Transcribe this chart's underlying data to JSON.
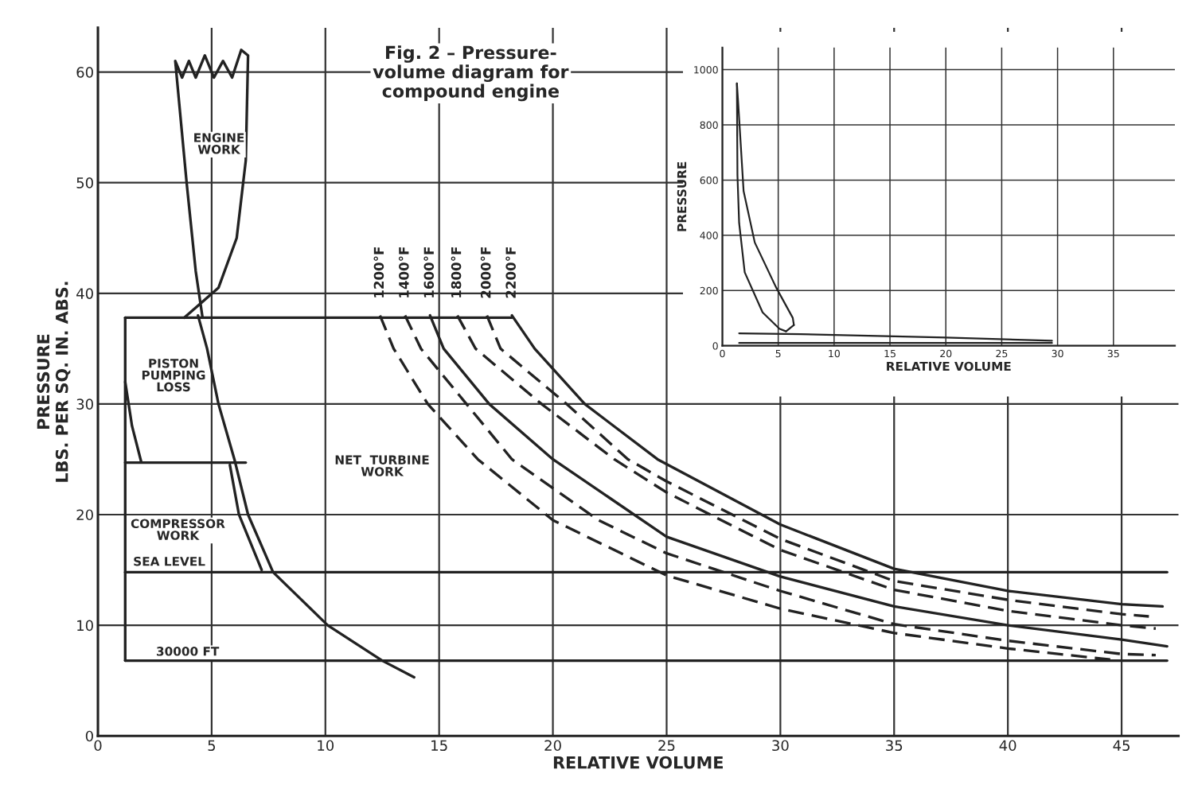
{
  "chart_data": [
    {
      "type": "line",
      "title": "Fig. 2 – Pressure-\nvolume diagram for\ncompound engine",
      "xlabel": "RELATIVE VOLUME",
      "ylabel": "PRESSURE\nLBS. PER SQ. IN. ABS.",
      "xlim": [
        0,
        47.5
      ],
      "ylim": [
        0,
        64
      ],
      "xticks": [
        0,
        5,
        10,
        15,
        20,
        25,
        30,
        35,
        40,
        45
      ],
      "yticks": [
        0,
        10,
        20,
        30,
        40,
        50,
        60
      ],
      "grid": true,
      "marker": "none",
      "series": [
        {
          "color": "#222222",
          "line_style": "solid",
          "x": [
            4.6,
            4.3,
            3.9,
            3.4,
            3.7,
            4.0,
            4.3,
            4.7,
            5.1,
            5.5,
            5.9,
            6.3,
            6.6,
            6.5,
            6.1,
            5.3,
            3.8
          ],
          "values": [
            37.8,
            42,
            50,
            61,
            59.5,
            61,
            59.5,
            61.5,
            59.5,
            61,
            59.5,
            62,
            61.5,
            52,
            45,
            40.5,
            37.8
          ]
        },
        {
          "color": "#222222",
          "line_style": "solid",
          "x": [
            1.2,
            18.2
          ],
          "values": [
            37.8,
            37.8
          ]
        },
        {
          "color": "#222222",
          "line_style": "solid",
          "x": [
            1.2,
            1.2
          ],
          "values": [
            37.8,
            6.8
          ]
        },
        {
          "color": "#222222",
          "line_style": "solid",
          "x": [
            1.2,
            1.5,
            1.9
          ],
          "values": [
            32,
            28,
            24.8
          ]
        },
        {
          "color": "#222222",
          "line_style": "solid",
          "x": [
            1.2,
            6.5
          ],
          "values": [
            24.7,
            24.7
          ]
        },
        {
          "color": "#222222",
          "line_style": "solid",
          "x": [
            1.2,
            47
          ],
          "values": [
            14.8,
            14.8
          ]
        },
        {
          "color": "#222222",
          "line_style": "solid",
          "x": [
            1.2,
            47
          ],
          "values": [
            6.8,
            6.8
          ]
        },
        {
          "color": "#222222",
          "line_style": "solid",
          "x": [
            4.4,
            4.8,
            5.3,
            6.0,
            6.6,
            7.7,
            10.1,
            12.5,
            13.9
          ],
          "values": [
            38,
            35,
            30,
            25,
            20,
            14.8,
            10,
            6.8,
            5.3
          ]
        },
        {
          "color": "#222222",
          "line_style": "solid",
          "x": [
            5.8,
            6.2,
            7.2
          ],
          "values": [
            24.5,
            20,
            15
          ]
        },
        {
          "name": "1200°F",
          "color": "#222222",
          "line_style": "dashed",
          "x": [
            12.4,
            13.0,
            14.5,
            16.7,
            20,
            25,
            30,
            35,
            40,
            44.5
          ],
          "values": [
            38,
            35,
            30,
            25,
            19.5,
            14.5,
            11.5,
            9.3,
            7.9,
            6.9
          ]
        },
        {
          "name": "1400°F",
          "color": "#222222",
          "line_style": "dashed",
          "x": [
            13.5,
            14.2,
            16.2,
            18.2,
            22,
            25,
            30,
            35,
            40,
            45,
            46.5
          ],
          "values": [
            38,
            35,
            30,
            25,
            19.5,
            16.5,
            13.1,
            10.1,
            8.6,
            7.4,
            7.3
          ]
        },
        {
          "name": "1600°F",
          "color": "#222222",
          "line_style": "solid",
          "x": [
            14.6,
            15.2,
            17.2,
            20,
            25,
            30,
            35,
            40,
            45,
            47
          ],
          "values": [
            38,
            35,
            30,
            25,
            18,
            14.4,
            11.7,
            10.0,
            8.7,
            8.1
          ]
        },
        {
          "name": "1800°F",
          "color": "#222222",
          "line_style": "dashed",
          "x": [
            15.8,
            16.6,
            19.5,
            22.7,
            25,
            30,
            35,
            40,
            45,
            46.5
          ],
          "values": [
            38,
            35,
            30,
            25,
            22,
            16.8,
            13.2,
            11.3,
            10.0,
            9.7
          ]
        },
        {
          "name": "2000°F",
          "color": "#222222",
          "line_style": "dashed",
          "x": [
            17.1,
            17.7,
            20.6,
            23.3,
            25,
            30,
            35,
            40,
            45,
            46.2
          ],
          "values": [
            38,
            35,
            30,
            25,
            23,
            17.8,
            14.0,
            12.3,
            11.0,
            10.8
          ]
        },
        {
          "name": "2200°F",
          "color": "#222222",
          "line_style": "solid",
          "x": [
            18.2,
            19.2,
            21.4,
            24.6,
            30,
            35,
            40,
            45,
            46.8
          ],
          "values": [
            38,
            35,
            30,
            25,
            19.1,
            15.1,
            13.1,
            11.9,
            11.7
          ]
        }
      ],
      "annotations": [
        "ENGINE\nWORK",
        "PISTON\nPUMPING\nLOSS",
        "NET  TURBINE\nWORK",
        "COMPRESSOR\nWORK",
        "SEA LEVEL",
        "30000 FT"
      ]
    },
    {
      "type": "line",
      "xlabel": "RELATIVE VOLUME",
      "ylabel": "PRESSURE",
      "xlim": [
        0,
        40.5
      ],
      "ylim": [
        0,
        1080
      ],
      "xticks": [
        0,
        5,
        10,
        15,
        20,
        25,
        30,
        35
      ],
      "yticks": [
        0,
        200,
        400,
        600,
        800,
        1000
      ],
      "grid": true,
      "marker": "none",
      "series": [
        {
          "color": "#222222",
          "line_style": "solid",
          "x": [
            1.3,
            1.35,
            1.5,
            2.0,
            3.6,
            5.1,
            5.7
          ],
          "values": [
            950,
            617,
            445,
            266,
            121,
            62,
            52
          ]
        },
        {
          "color": "#222222",
          "line_style": "solid",
          "x": [
            1.3,
            1.4,
            1.9,
            2.9,
            4.8,
            6.3,
            6.4
          ],
          "values": [
            950,
            890,
            560,
            374,
            212,
            101,
            75
          ]
        },
        {
          "color": "#222222",
          "line_style": "solid",
          "x": [
            5.7,
            6.4
          ],
          "values": [
            52,
            75
          ]
        },
        {
          "color": "#222222",
          "line_style": "solid",
          "x": [
            1.5,
            7,
            20,
            29.5
          ],
          "values": [
            45,
            42,
            30,
            18
          ]
        },
        {
          "color": "#222222",
          "line_style": "solid",
          "x": [
            1.5,
            29.5
          ],
          "values": [
            10,
            10
          ]
        }
      ]
    }
  ]
}
